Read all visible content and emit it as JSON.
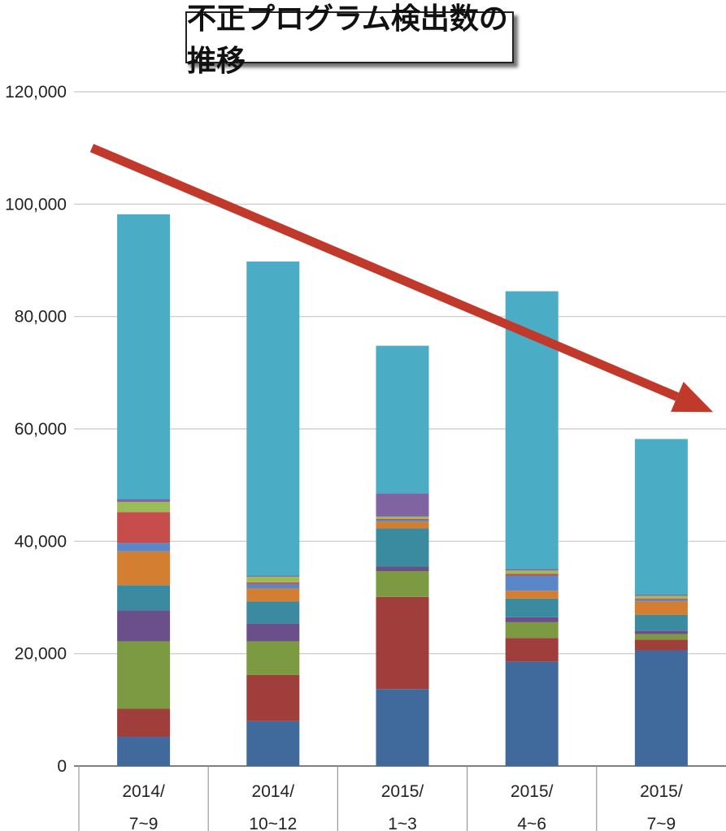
{
  "title": "不正プログラム検出数の推移",
  "chart_data": {
    "type": "bar",
    "stacked": true,
    "title": "不正プログラム検出数の推移",
    "xlabel": "",
    "ylabel": "",
    "ylim": [
      0,
      120000
    ],
    "yticks": [
      "0",
      "20,000",
      "40,000",
      "60,000",
      "80,000",
      "100,000",
      "120,000"
    ],
    "grid": true,
    "categories": [
      [
        "2014/",
        "7~9"
      ],
      [
        "2014/",
        "10~12"
      ],
      [
        "2015/",
        "1~3"
      ],
      [
        "2015/",
        "4~6"
      ],
      [
        "2015/",
        "7~9"
      ]
    ],
    "series": [
      {
        "color": "#3f6a9b",
        "values": [
          5200,
          8000,
          13700,
          18600,
          20600
        ]
      },
      {
        "color": "#a03e3c",
        "values": [
          5000,
          8200,
          16400,
          4200,
          1900
        ]
      },
      {
        "color": "#7b9a41",
        "values": [
          12000,
          6000,
          4600,
          2800,
          1000
        ]
      },
      {
        "color": "#6b4f8a",
        "values": [
          5500,
          3200,
          800,
          900,
          600
        ]
      },
      {
        "color": "#3a8ba0",
        "values": [
          4500,
          3900,
          6800,
          3300,
          2800
        ]
      },
      {
        "color": "#d37e30",
        "values": [
          6000,
          2300,
          1200,
          1400,
          2400
        ]
      },
      {
        "color": "#5a87c8",
        "values": [
          1500,
          800,
          300,
          2700,
          300
        ]
      },
      {
        "color": "#c64d4b",
        "values": [
          5500,
          300,
          200,
          300,
          200
        ]
      },
      {
        "color": "#9bbb59",
        "values": [
          1800,
          1000,
          400,
          600,
          500
        ]
      },
      {
        "color": "#8064a2",
        "values": [
          500,
          200,
          4100,
          300,
          200
        ]
      },
      {
        "color": "#4bacc6",
        "values": [
          50700,
          55900,
          26300,
          49400,
          27700
        ]
      }
    ],
    "trend_arrow": {
      "color": "#c0392b",
      "from": [
        0.1,
        110000
      ],
      "to": [
        4.9,
        63000
      ]
    }
  }
}
